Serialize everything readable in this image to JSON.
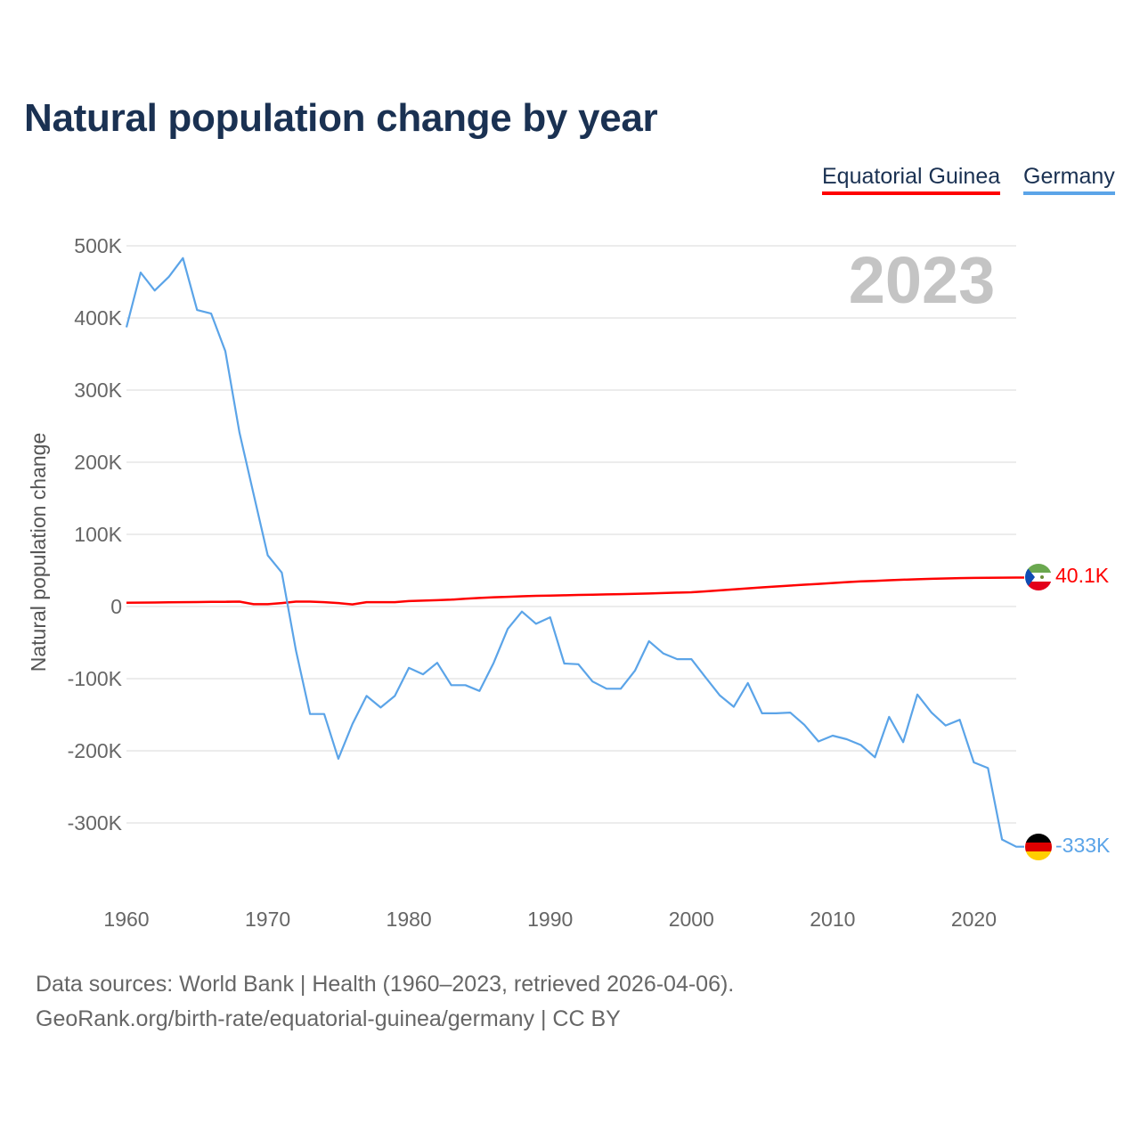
{
  "title": "Natural population change by year",
  "legend": [
    {
      "label": "Equatorial Guinea",
      "color": "#ff0000"
    },
    {
      "label": "Germany",
      "color": "#5ba4e8"
    }
  ],
  "year_label": "2023",
  "footer": {
    "line1": "Data sources: World Bank | Health (1960–2023, retrieved 2026-04-06).",
    "line2": "GeoRank.org/birth-rate/equatorial-guinea/germany | CC BY"
  },
  "chart_data": {
    "type": "line",
    "title": "Natural population change by year",
    "xlabel": "",
    "ylabel": "Natural population change",
    "xlim": [
      1960,
      2023
    ],
    "ylim": [
      -400000,
      500000
    ],
    "x_ticks": [
      1960,
      1970,
      1980,
      1990,
      2000,
      2010,
      2020
    ],
    "x_tick_labels": [
      "1960",
      "1970",
      "1980",
      "1990",
      "2000",
      "2010",
      "2020"
    ],
    "y_ticks": [
      500000,
      400000,
      300000,
      200000,
      100000,
      0,
      -100000,
      -200000,
      -300000
    ],
    "y_tick_labels": [
      "500K",
      "400K",
      "300K",
      "200K",
      "100K",
      "0",
      "-100K",
      "-200K",
      "-300K"
    ],
    "grid": true,
    "legend_position": "top-right",
    "series": [
      {
        "name": "Equatorial Guinea",
        "color": "#ff0000",
        "end_label": "40.1K",
        "x_start": 1960,
        "values": [
          5200,
          5400,
          5600,
          5800,
          6000,
          6200,
          6400,
          6600,
          6800,
          3200,
          3200,
          4800,
          6800,
          6800,
          6000,
          4800,
          3000,
          6000,
          6000,
          6000,
          7500,
          8200,
          8800,
          9500,
          10800,
          11800,
          12800,
          13500,
          14200,
          14800,
          15200,
          15600,
          16000,
          16400,
          16800,
          17200,
          17600,
          18000,
          18600,
          19200,
          19800,
          21000,
          22400,
          23800,
          25200,
          26600,
          27800,
          29000,
          30200,
          31400,
          32600,
          33800,
          34800,
          35600,
          36400,
          37200,
          37800,
          38400,
          38900,
          39400,
          39600,
          39800,
          40000,
          40100
        ]
      },
      {
        "name": "Germany",
        "color": "#5ba4e8",
        "end_label": "-333K",
        "x_start": 1960,
        "values": [
          387000,
          463000,
          438000,
          457000,
          483000,
          411000,
          406000,
          354000,
          241000,
          156000,
          71000,
          47000,
          -61000,
          -149000,
          -149000,
          -211000,
          -163000,
          -124000,
          -140000,
          -124000,
          -85000,
          -94000,
          -78000,
          -109000,
          -109000,
          -117000,
          -78000,
          -31000,
          -7000,
          -24000,
          -15000,
          -79000,
          -80000,
          -104000,
          -114000,
          -114000,
          -89000,
          -48000,
          -65000,
          -73000,
          -73000,
          -98000,
          -123000,
          -139000,
          -106000,
          -148000,
          -148000,
          -147000,
          -164000,
          -187000,
          -179000,
          -184000,
          -192000,
          -209000,
          -153000,
          -188000,
          -122000,
          -147000,
          -165000,
          -157000,
          -216000,
          -224000,
          -323000,
          -333000
        ]
      }
    ]
  }
}
